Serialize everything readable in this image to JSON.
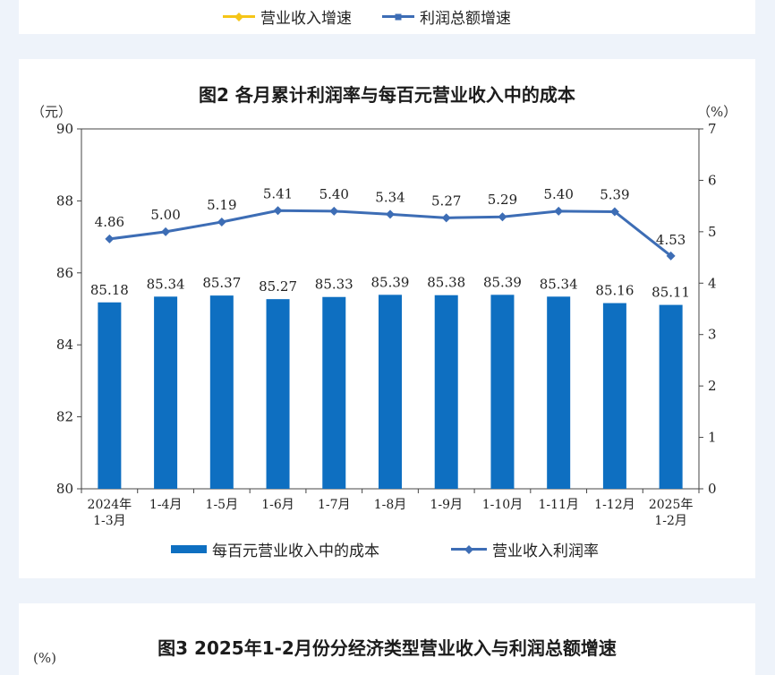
{
  "top_legend": {
    "items": [
      {
        "label": "营业收入增速",
        "color": "#f5c518",
        "marker": "diamond"
      },
      {
        "label": "利润总额增速",
        "color": "#3d6db5",
        "marker": "square"
      }
    ]
  },
  "figure2": {
    "title": "图2  各月累计利润率与每百元营业收入中的成本",
    "left_unit": "（元）",
    "right_unit": "（%）"
  },
  "chart_data": [
    {
      "type": "bar+line",
      "title": "图2  各月累计利润率与每百元营业收入中的成本",
      "categories": [
        [
          "2024年",
          "1-3月"
        ],
        [
          "1-4月"
        ],
        [
          "1-5月"
        ],
        [
          "1-6月"
        ],
        [
          "1-7月"
        ],
        [
          "1-8月"
        ],
        [
          "1-9月"
        ],
        [
          "1-10月"
        ],
        [
          "1-11月"
        ],
        [
          "1-12月"
        ],
        [
          "2025年",
          "1-2月"
        ]
      ],
      "series": [
        {
          "name": "每百元营业收入中的成本",
          "type": "bar",
          "axis": "left",
          "color": "#0e6fc1",
          "values": [
            85.18,
            85.34,
            85.37,
            85.27,
            85.33,
            85.39,
            85.38,
            85.39,
            85.34,
            85.16,
            85.11
          ],
          "labels": [
            "85.18",
            "85.34",
            "85.37",
            "85.27",
            "85.33",
            "85.39",
            "85.38",
            "85.39",
            "85.34",
            "85.16",
            "85.11"
          ]
        },
        {
          "name": "营业收入利润率",
          "type": "line",
          "axis": "right",
          "color": "#3d6db5",
          "marker": "diamond",
          "values": [
            4.86,
            5.0,
            5.19,
            5.41,
            5.4,
            5.34,
            5.27,
            5.29,
            5.4,
            5.39,
            4.53
          ],
          "labels": [
            "4.86",
            "5.00",
            "5.19",
            "5.41",
            "5.40",
            "5.34",
            "5.27",
            "5.29",
            "5.40",
            "5.39",
            "4.53"
          ]
        }
      ],
      "y_left": {
        "min": 80,
        "max": 90,
        "ticks": [
          80,
          82,
          84,
          86,
          88,
          90
        ],
        "unit": "（元）"
      },
      "y_right": {
        "min": 0,
        "max": 7,
        "ticks": [
          0,
          1,
          2,
          3,
          4,
          5,
          6,
          7
        ],
        "unit": "（%）"
      },
      "grid": false,
      "legend_position": "bottom"
    }
  ],
  "figure3": {
    "title": "图3  2025年1-2月份分经济类型营业收入与利润总额增速",
    "unit": "(%)"
  }
}
